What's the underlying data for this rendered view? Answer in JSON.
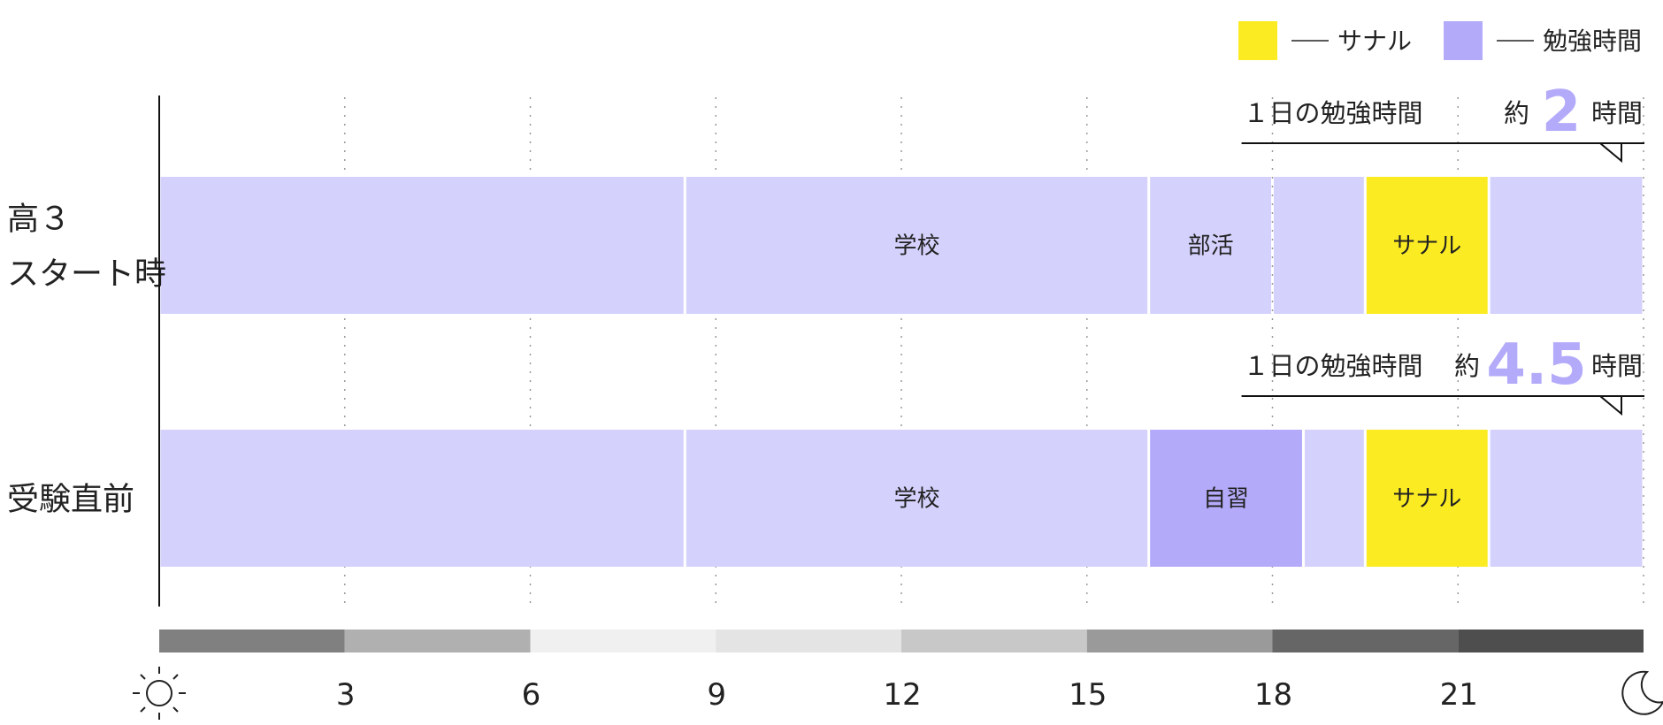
{
  "chart_data": {
    "type": "bar",
    "orientation": "horizontal-timeline",
    "x_unit": "hour",
    "xlim": [
      0,
      24
    ],
    "x_ticks": [
      3,
      6,
      9,
      12,
      15,
      18,
      21
    ],
    "x_tick_labels": [
      "3",
      "6",
      "9",
      "12",
      "15",
      "18",
      "21"
    ],
    "x_start_icon": "sun-icon",
    "x_end_icon": "moon-icon",
    "legend_position": "top-right",
    "legend": [
      {
        "key": "sanaru",
        "label": "サナル",
        "color": "#fbeb22"
      },
      {
        "key": "study",
        "label": "勉強時間",
        "color": "#b3aafa"
      }
    ],
    "base_color": "#d4d2fd",
    "day_band": [
      {
        "from": 0,
        "to": 3,
        "color": "#808080"
      },
      {
        "from": 3,
        "to": 6,
        "color": "#b0b0b0"
      },
      {
        "from": 6,
        "to": 9,
        "color": "#f0f0f0"
      },
      {
        "from": 9,
        "to": 12,
        "color": "#e4e4e4"
      },
      {
        "from": 12,
        "to": 15,
        "color": "#c8c8c8"
      },
      {
        "from": 15,
        "to": 18,
        "color": "#9a9a9a"
      },
      {
        "from": 18,
        "to": 21,
        "color": "#666666"
      },
      {
        "from": 21,
        "to": 24,
        "color": "#4e4e4e"
      }
    ],
    "rows": [
      {
        "label_lines": [
          "高３",
          "スタート時"
        ],
        "segments": [
          {
            "from": 0,
            "to": 8.5,
            "label": "",
            "kind": "base"
          },
          {
            "from": 8.5,
            "to": 16,
            "label": "学校",
            "kind": "base"
          },
          {
            "from": 16,
            "to": 18,
            "label": "部活",
            "kind": "base"
          },
          {
            "from": 18,
            "to": 19.5,
            "label": "",
            "kind": "base"
          },
          {
            "from": 19.5,
            "to": 21.5,
            "label": "サナル",
            "kind": "sanaru"
          },
          {
            "from": 21.5,
            "to": 24,
            "label": "",
            "kind": "base"
          }
        ],
        "callout": {
          "prefix": "１日の勉強時間",
          "approx": "約",
          "value": "2",
          "unit": "時間",
          "from": 17.5,
          "to": 24
        }
      },
      {
        "label_lines": [
          "受験直前"
        ],
        "segments": [
          {
            "from": 0,
            "to": 8.5,
            "label": "",
            "kind": "base"
          },
          {
            "from": 8.5,
            "to": 16,
            "label": "学校",
            "kind": "base"
          },
          {
            "from": 16,
            "to": 18.5,
            "label": "自習",
            "kind": "study"
          },
          {
            "from": 18.5,
            "to": 19.5,
            "label": "",
            "kind": "base"
          },
          {
            "from": 19.5,
            "to": 21.5,
            "label": "サナル",
            "kind": "sanaru"
          },
          {
            "from": 21.5,
            "to": 24,
            "label": "",
            "kind": "base"
          }
        ],
        "callout": {
          "prefix": "１日の勉強時間",
          "approx": "約",
          "value": "4.5",
          "unit": "時間",
          "from": 17.5,
          "to": 24
        }
      }
    ]
  }
}
